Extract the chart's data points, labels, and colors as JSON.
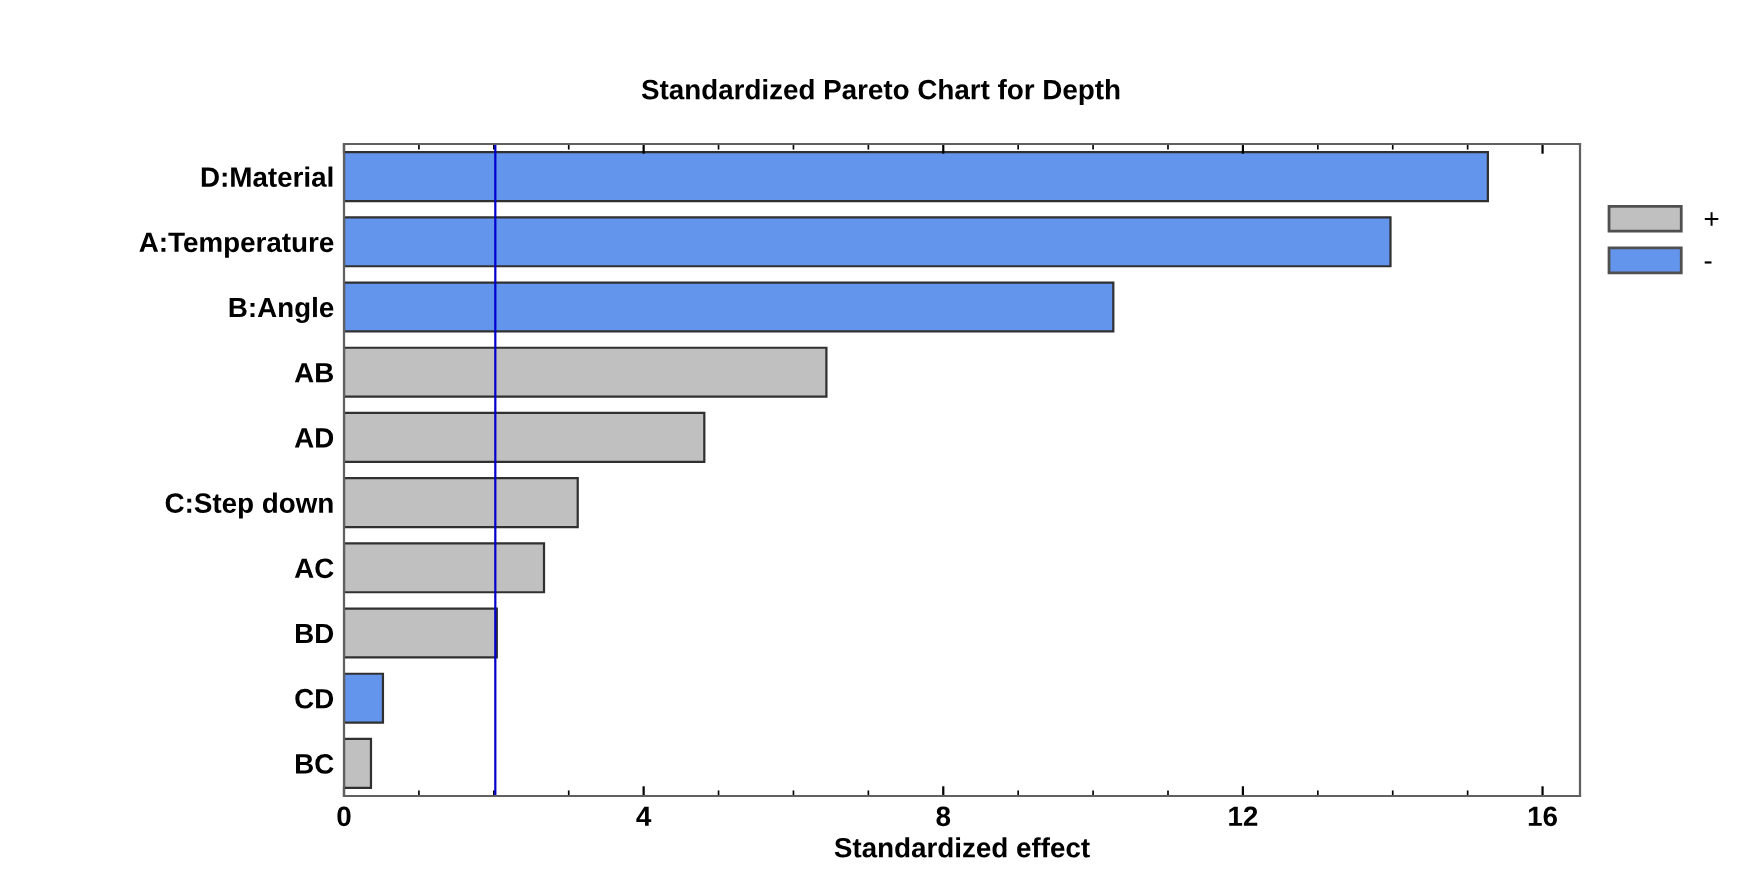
{
  "chart_data": {
    "type": "bar",
    "orientation": "horizontal",
    "title": "Standardized Pareto Chart for Depth",
    "xlabel": "Standardized effect",
    "categories": [
      "D:Material",
      "A:Temperature",
      "B:Angle",
      "AB",
      "AD",
      "C:Step down",
      "AC",
      "BD",
      "CD",
      "BC"
    ],
    "series": [
      {
        "name": "+",
        "color": "#c0c0c0",
        "values": [
          null,
          null,
          null,
          6.44,
          4.81,
          3.12,
          2.67,
          2.04,
          null,
          0.36
        ]
      },
      {
        "name": "-",
        "color": "#6495ed",
        "values": [
          15.27,
          13.97,
          10.27,
          null,
          null,
          null,
          null,
          null,
          0.52,
          null
        ]
      }
    ],
    "xlim": [
      0,
      16.5
    ],
    "xticks": [
      0,
      4,
      8,
      12,
      16
    ],
    "ref_lines": [
      {
        "axis": "x",
        "value": 2.02,
        "color": "#0000cd"
      }
    ],
    "grid": false,
    "legend": "right"
  }
}
